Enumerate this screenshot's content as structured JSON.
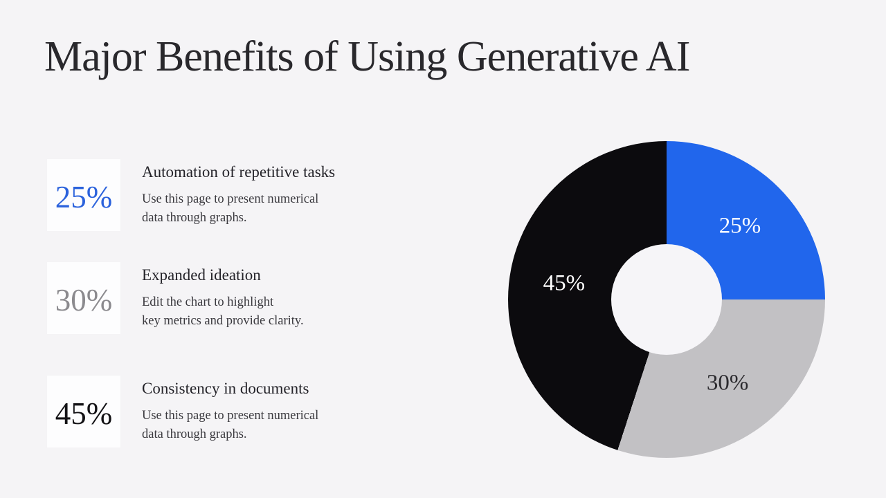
{
  "page": {
    "background": "#f5f4f6",
    "title": "Major Benefits of Using Generative AI"
  },
  "stats": [
    {
      "value": "25%",
      "value_color": "#2b62dc",
      "heading": "Automation of repetitive tasks",
      "description_lines": [
        "Use this page to present numerical",
        "data through graphs."
      ]
    },
    {
      "value": "30%",
      "value_color": "#8b8a8e",
      "heading": "Expanded ideation",
      "description_lines": [
        "Edit the chart to highlight",
        "key metrics and provide clarity."
      ]
    },
    {
      "value": "45%",
      "value_color": "#131215",
      "heading": "Consistency in documents",
      "description_lines": [
        "Use this page to present numerical",
        "data through graphs."
      ]
    }
  ],
  "chart_data": {
    "type": "pie",
    "subtype": "donut",
    "title": "",
    "start_angle_deg": 0,
    "direction": "clockwise",
    "inner_radius_ratio": 0.35,
    "legend_position": "none",
    "slices": [
      {
        "label": "25%",
        "value": 25,
        "color": "#2166ec",
        "label_color": "#ffffff"
      },
      {
        "label": "30%",
        "value": 30,
        "color": "#c2c1c4",
        "label_color": "#2b2a2e"
      },
      {
        "label": "45%",
        "value": 45,
        "color": "#0c0b0e",
        "label_color": "#ffffff"
      }
    ]
  }
}
